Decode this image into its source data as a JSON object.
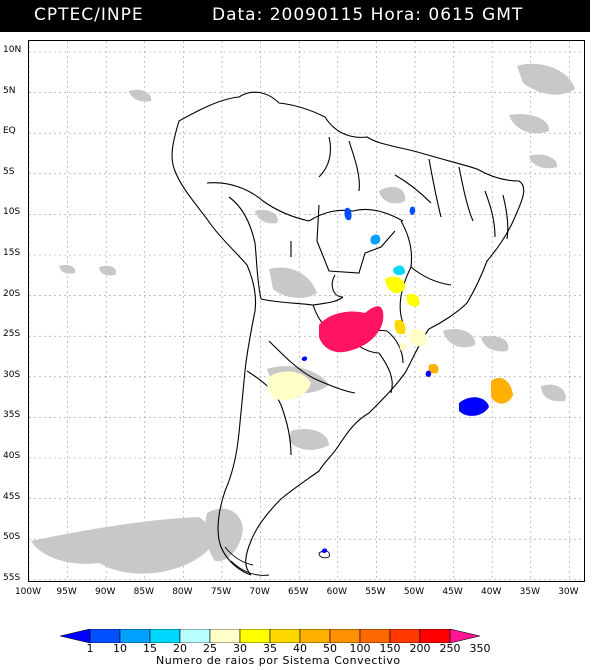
{
  "header": {
    "organization": "CPTEC/INPE",
    "info": "Data: 20090115 Hora: 0615 GMT"
  },
  "map": {
    "lat_labels": [
      "10N",
      "5N",
      "EQ",
      "5S",
      "10S",
      "15S",
      "20S",
      "25S",
      "30S",
      "35S",
      "40S",
      "45S",
      "50S",
      "55S"
    ],
    "lon_labels": [
      "100W",
      "95W",
      "90W",
      "85W",
      "80W",
      "75W",
      "70W",
      "65W",
      "60W",
      "55W",
      "50W",
      "45W",
      "40W",
      "35W",
      "30W"
    ]
  },
  "legend": {
    "ticks": [
      "1",
      "10",
      "15",
      "20",
      "25",
      "30",
      "35",
      "40",
      "50",
      "100",
      "150",
      "200",
      "250",
      "350"
    ],
    "colors": [
      "#0000ff",
      "#0050ff",
      "#00a0ff",
      "#00d8ff",
      "#b8ffff",
      "#ffffc8",
      "#ffff00",
      "#ffd800",
      "#ffb000",
      "#ff9000",
      "#ff6800",
      "#ff3800",
      "#ff0000",
      "#ff1493"
    ],
    "title": "Numero de raios por Sistema Convectivo"
  }
}
